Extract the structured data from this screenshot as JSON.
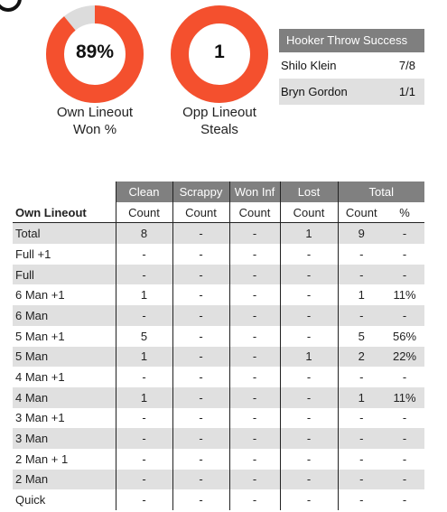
{
  "colors": {
    "accent": "#f4502e",
    "track": "#dcdcdc",
    "header_gray": "#808080",
    "row_shade": "#e0e0e0"
  },
  "icon": "circle-badge-icon",
  "chart_data": [
    {
      "type": "pie",
      "subtype": "donut",
      "center_text": "89%",
      "label_line1": "Own Lineout",
      "label_line2": "Won %",
      "slices": [
        {
          "label": "won",
          "value": 89
        },
        {
          "label": "lost",
          "value": 11
        }
      ]
    },
    {
      "type": "pie",
      "subtype": "donut",
      "center_text": "1",
      "label_line1": "Opp Lineout",
      "label_line2": "Steals",
      "slices": [
        {
          "label": "steals",
          "value": 1
        }
      ]
    },
    {
      "type": "table",
      "title": "Hooker Throw Success",
      "rows": [
        {
          "name": "Shilo Klein",
          "value": "7/8"
        },
        {
          "name": "Bryn Gordon",
          "value": "1/1"
        }
      ]
    },
    {
      "type": "table",
      "row_header": "Own Lineout",
      "groups": [
        "Clean",
        "Scrappy",
        "Won Inf",
        "Lost",
        "Total"
      ],
      "subheaders": [
        "Count",
        "Count",
        "Count",
        "Count",
        "Count",
        "%"
      ],
      "rows": [
        {
          "label": "Total",
          "cells": [
            "8",
            "-",
            "-",
            "1",
            "9",
            "-"
          ]
        },
        {
          "label": "Full +1",
          "cells": [
            "-",
            "-",
            "-",
            "-",
            "-",
            "-"
          ]
        },
        {
          "label": "Full",
          "cells": [
            "-",
            "-",
            "-",
            "-",
            "-",
            "-"
          ]
        },
        {
          "label": "6 Man +1",
          "cells": [
            "1",
            "-",
            "-",
            "-",
            "1",
            "11%"
          ]
        },
        {
          "label": "6 Man",
          "cells": [
            "-",
            "-",
            "-",
            "-",
            "-",
            "-"
          ]
        },
        {
          "label": "5 Man +1",
          "cells": [
            "5",
            "-",
            "-",
            "-",
            "5",
            "56%"
          ]
        },
        {
          "label": "5 Man",
          "cells": [
            "1",
            "-",
            "-",
            "1",
            "2",
            "22%"
          ]
        },
        {
          "label": "4 Man +1",
          "cells": [
            "-",
            "-",
            "-",
            "-",
            "-",
            "-"
          ]
        },
        {
          "label": "4 Man",
          "cells": [
            "1",
            "-",
            "-",
            "-",
            "1",
            "11%"
          ]
        },
        {
          "label": "3 Man +1",
          "cells": [
            "-",
            "-",
            "-",
            "-",
            "-",
            "-"
          ]
        },
        {
          "label": "3 Man",
          "cells": [
            "-",
            "-",
            "-",
            "-",
            "-",
            "-"
          ]
        },
        {
          "label": "2 Man + 1",
          "cells": [
            "-",
            "-",
            "-",
            "-",
            "-",
            "-"
          ]
        },
        {
          "label": "2 Man",
          "cells": [
            "-",
            "-",
            "-",
            "-",
            "-",
            "-"
          ]
        },
        {
          "label": "Quick",
          "cells": [
            "-",
            "-",
            "-",
            "-",
            "-",
            "-"
          ]
        }
      ]
    }
  ]
}
